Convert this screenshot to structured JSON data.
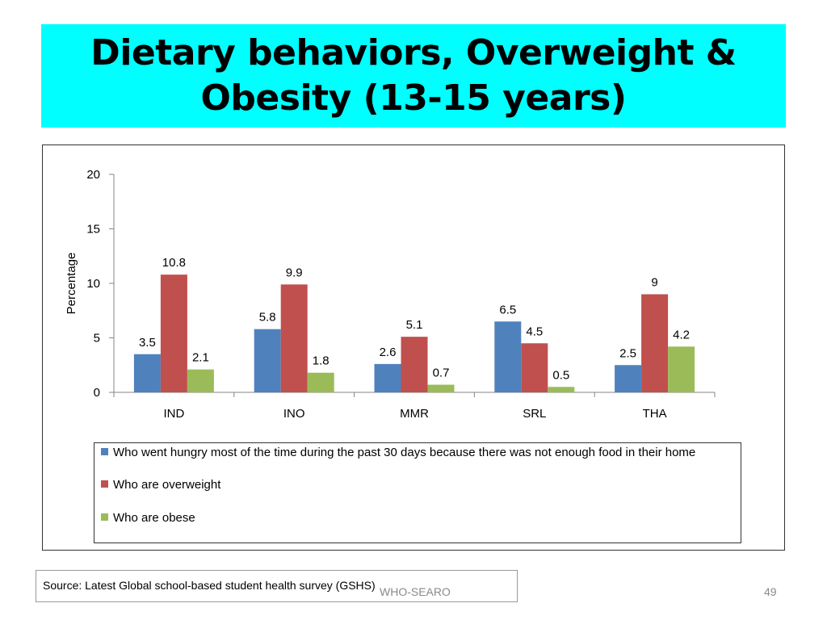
{
  "slide": {
    "title": "Dietary behaviors, Overweight & Obesity (13-15 years)",
    "source": "Source: Latest Global school-based student health survey (GSHS)",
    "footer": "WHO-SEARO",
    "page_number": "49",
    "banner_color": "#00FFFF"
  },
  "chart_data": {
    "type": "bar",
    "title": "",
    "xlabel": "",
    "ylabel": "Percentage",
    "ylim": [
      0,
      20
    ],
    "yticks": [
      0,
      5,
      10,
      15,
      20
    ],
    "grid": false,
    "legend_position": "bottom",
    "categories": [
      "IND",
      "INO",
      "MMR",
      "SRL",
      "THA"
    ],
    "series": [
      {
        "name": "Who went hungry most of the time during the past 30 days because there was not enough food in their home",
        "color": "#4F81BD",
        "values": [
          3.5,
          5.8,
          2.6,
          6.5,
          2.5
        ],
        "labels": [
          "3.5",
          "5.8",
          "2.6",
          "6.5",
          "2.5"
        ]
      },
      {
        "name": "Who are overweight",
        "color": "#C0504D",
        "values": [
          10.8,
          9.9,
          5.1,
          4.5,
          9
        ],
        "labels": [
          "10.8",
          "9.9",
          "5.1",
          "4.5",
          "9"
        ]
      },
      {
        "name": "Who are obese",
        "color": "#9BBB59",
        "values": [
          2.1,
          1.8,
          0.7,
          0.5,
          4.2
        ],
        "labels": [
          "2.1",
          "1.8",
          "0.7",
          "0.5",
          "4.2"
        ]
      }
    ]
  }
}
